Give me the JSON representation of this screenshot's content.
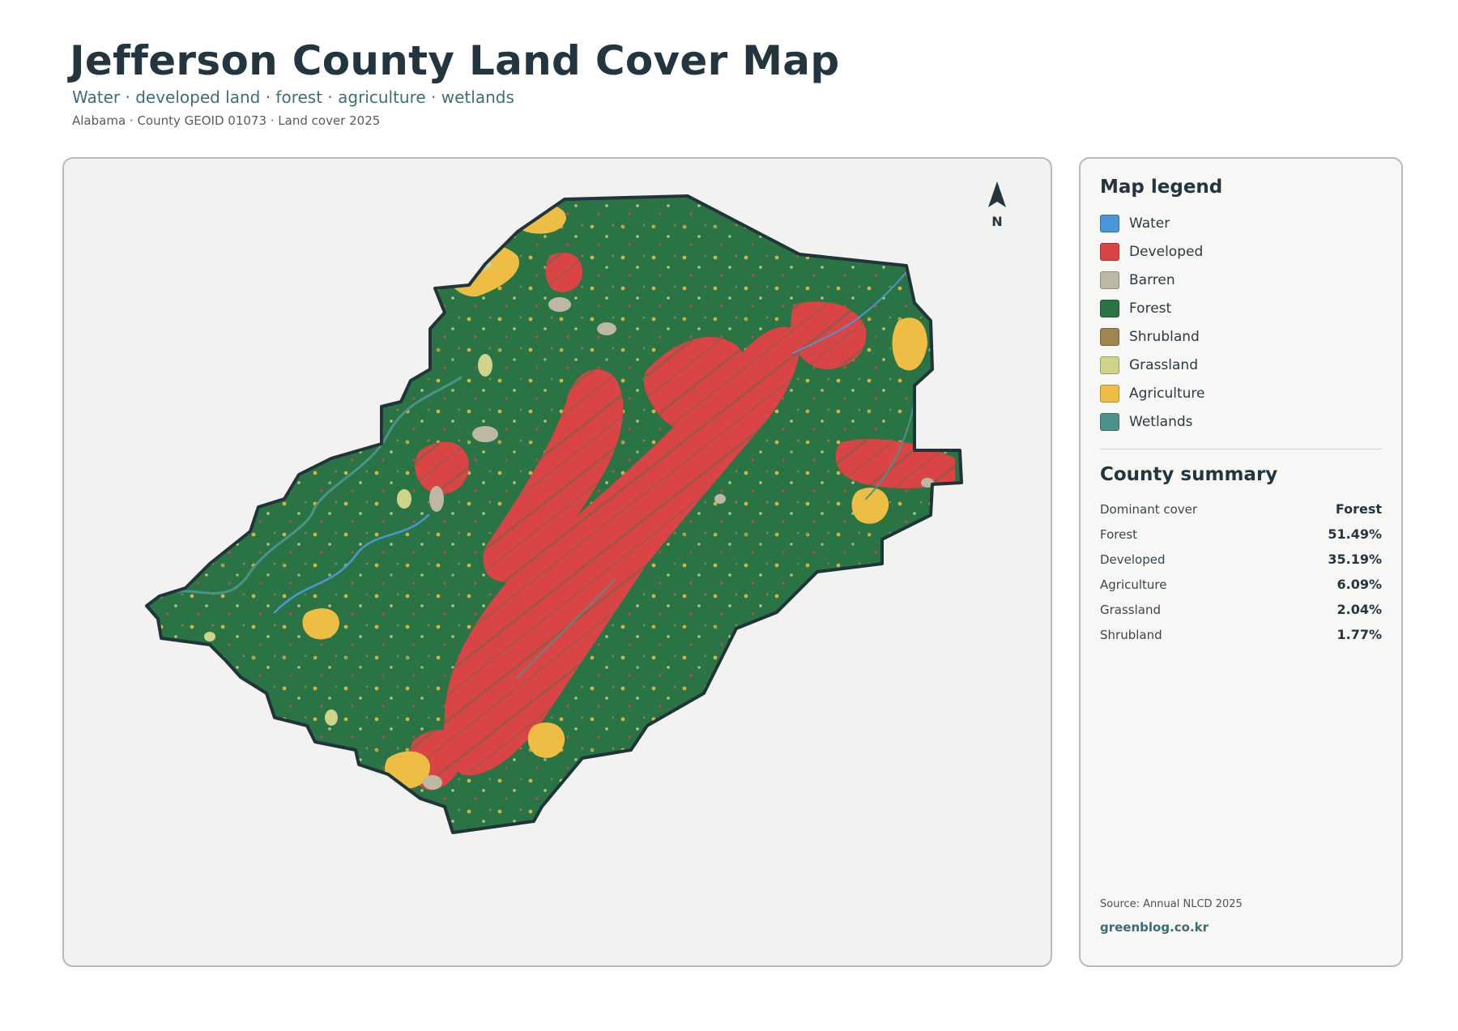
{
  "header": {
    "title": "Jefferson County Land Cover Map",
    "subtitle": "Water · developed land · forest · agriculture · wetlands",
    "meta": "Alabama · County GEOID 01073 · Land cover 2025"
  },
  "map": {
    "north_label": "N",
    "colors": {
      "water": "#4a97d8",
      "developed": "#d94545",
      "barren": "#bfb7a5",
      "forest": "#2a7344",
      "shrubland": "#a08550",
      "grassland": "#cfd48a",
      "agriculture": "#eebd43",
      "wetlands": "#4c928b",
      "boundary": "#20343a",
      "background": "#f2f2f1"
    }
  },
  "legend": {
    "heading": "Map legend",
    "items": [
      {
        "label": "Water",
        "color": "#4a97d8"
      },
      {
        "label": "Developed",
        "color": "#d94545"
      },
      {
        "label": "Barren",
        "color": "#bfb7a5"
      },
      {
        "label": "Forest",
        "color": "#2a7344"
      },
      {
        "label": "Shrubland",
        "color": "#a08550"
      },
      {
        "label": "Grassland",
        "color": "#cfd48a"
      },
      {
        "label": "Agriculture",
        "color": "#eebd43"
      },
      {
        "label": "Wetlands",
        "color": "#4c928b"
      }
    ]
  },
  "summary": {
    "heading": "County summary",
    "rows": [
      {
        "label": "Dominant cover",
        "value": "Forest"
      },
      {
        "label": "Forest",
        "value": "51.49%"
      },
      {
        "label": "Developed",
        "value": "35.19%"
      },
      {
        "label": "Agriculture",
        "value": "6.09%"
      },
      {
        "label": "Grassland",
        "value": "2.04%"
      },
      {
        "label": "Shrubland",
        "value": "1.77%"
      }
    ]
  },
  "footer": {
    "source": "Source: Annual NLCD 2025",
    "site": "greenblog.co.kr"
  }
}
